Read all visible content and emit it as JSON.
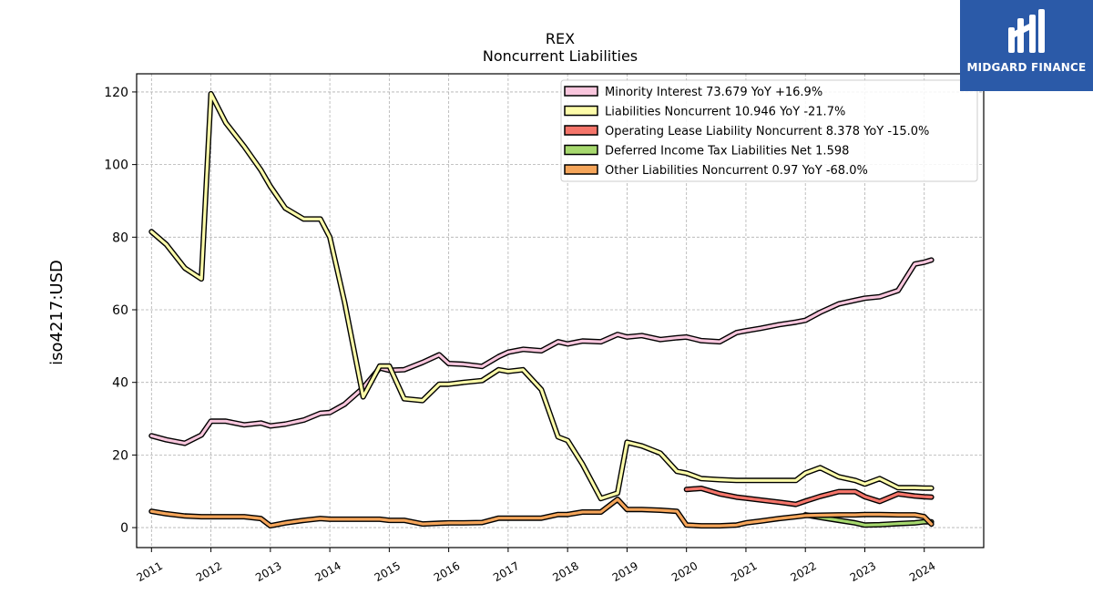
{
  "logo": {
    "text": "MIDGARD FINANCE",
    "bg": "#2b5aa8"
  },
  "chart_data": {
    "type": "line",
    "title": "REX",
    "subtitle": "Noncurrent  Liabilities",
    "ylabel": "iso4217:USD",
    "xlabel": "",
    "xlim": [
      2010.75,
      2025.0
    ],
    "ylim": [
      -5.5,
      125
    ],
    "grid": true,
    "legend_position": "top-right",
    "yticks": [
      0,
      20,
      40,
      60,
      80,
      100,
      120
    ],
    "xticks": [
      "2011",
      "2012",
      "2013",
      "2014",
      "2015",
      "2016",
      "2017",
      "2018",
      "2019",
      "2020",
      "2021",
      "2022",
      "2023",
      "2024"
    ],
    "series": [
      {
        "name": "Minority Interest  73.679 YoY +16.9%",
        "color": "#f9c6dd",
        "x": [
          2011.0,
          2011.25,
          2011.56,
          2011.84,
          2012.0,
          2012.25,
          2012.56,
          2012.84,
          2013.0,
          2013.25,
          2013.56,
          2013.84,
          2014.0,
          2014.25,
          2014.56,
          2014.84,
          2015.0,
          2015.25,
          2015.56,
          2015.84,
          2016.0,
          2016.25,
          2016.56,
          2016.84,
          2017.0,
          2017.25,
          2017.56,
          2017.84,
          2018.0,
          2018.25,
          2018.56,
          2018.84,
          2019.0,
          2019.25,
          2019.56,
          2019.84,
          2020.0,
          2020.25,
          2020.56,
          2020.84,
          2021.0,
          2021.25,
          2021.56,
          2021.84,
          2022.0,
          2022.25,
          2022.56,
          2022.84,
          2023.0,
          2023.25,
          2023.56,
          2023.84,
          2024.0,
          2024.12
        ],
        "y": [
          25.3,
          24.2,
          23.2,
          25.5,
          29.3,
          29.3,
          28.3,
          28.8,
          28.0,
          28.5,
          29.6,
          31.5,
          31.7,
          34.0,
          38.5,
          44.0,
          43.3,
          43.5,
          45.5,
          47.6,
          45.2,
          45.0,
          44.4,
          47.1,
          48.3,
          49.1,
          48.7,
          51.2,
          50.6,
          51.4,
          51.2,
          53.2,
          52.5,
          52.9,
          51.8,
          52.3,
          52.5,
          51.5,
          51.2,
          53.7,
          54.2,
          54.9,
          55.9,
          56.6,
          57.1,
          59.3,
          61.6,
          62.6,
          63.2,
          63.6,
          65.3,
          72.6,
          73.1,
          73.7
        ]
      },
      {
        "name": "Liabilities Noncurrent  10.946 YoY -21.7%",
        "color": "#fdfcaa",
        "x": [
          2011.0,
          2011.25,
          2011.56,
          2011.84,
          2012.0,
          2012.25,
          2012.56,
          2012.84,
          2013.0,
          2013.25,
          2013.56,
          2013.84,
          2014.0,
          2014.25,
          2014.56,
          2014.84,
          2015.0,
          2015.25,
          2015.56,
          2015.84,
          2016.0,
          2016.25,
          2016.56,
          2016.84,
          2017.0,
          2017.25,
          2017.56,
          2017.84,
          2018.0,
          2018.25,
          2018.56,
          2018.84,
          2019.0,
          2019.25,
          2019.56,
          2019.84,
          2020.0,
          2020.25,
          2020.56,
          2020.84,
          2021.0,
          2021.25,
          2021.56,
          2021.84,
          2022.0,
          2022.25,
          2022.56,
          2022.84,
          2023.0,
          2023.25,
          2023.56,
          2023.84,
          2024.0,
          2024.12
        ],
        "y": [
          81.5,
          78.0,
          71.5,
          68.5,
          119.5,
          111.5,
          105.0,
          98.5,
          94.0,
          88.0,
          85.0,
          85.0,
          80.0,
          62.0,
          36.0,
          44.5,
          44.5,
          35.5,
          35.0,
          39.5,
          39.5,
          40.0,
          40.5,
          43.5,
          43.0,
          43.5,
          38.0,
          25.0,
          24.0,
          17.5,
          8.0,
          9.5,
          23.5,
          22.5,
          20.5,
          15.5,
          15.0,
          13.5,
          13.2,
          13.0,
          13.0,
          13.0,
          13.0,
          13.0,
          15.0,
          16.5,
          14.0,
          13.0,
          12.0,
          13.5,
          11.0,
          11.0,
          10.9,
          10.9
        ]
      },
      {
        "name": "Operating Lease Liability Noncurrent  8.378 YoY -15.0%",
        "color": "#f4756a",
        "x": [
          2020.0,
          2020.25,
          2020.56,
          2020.84,
          2021.0,
          2021.25,
          2021.56,
          2021.84,
          2022.0,
          2022.25,
          2022.56,
          2022.84,
          2023.0,
          2023.25,
          2023.56,
          2023.84,
          2024.0,
          2024.12
        ],
        "y": [
          10.5,
          10.8,
          9.3,
          8.4,
          8.1,
          7.6,
          7.0,
          6.4,
          7.3,
          8.6,
          9.9,
          9.9,
          8.5,
          7.2,
          9.3,
          8.7,
          8.5,
          8.4
        ]
      },
      {
        "name": "Deferred Income Tax Liabilities Net  1.598",
        "color": "#a6d86e",
        "x": [
          2022.0,
          2022.25,
          2022.56,
          2022.84,
          2023.0,
          2023.25,
          2023.56,
          2023.84,
          2024.0,
          2024.12
        ],
        "y": [
          3.5,
          2.8,
          2.0,
          1.3,
          0.7,
          0.8,
          1.1,
          1.3,
          1.6,
          1.6
        ]
      },
      {
        "name": "Other Liabilities Noncurrent  0.97 YoY -68.0%",
        "color": "#f5a55a",
        "x": [
          2011.0,
          2011.25,
          2011.56,
          2011.84,
          2012.0,
          2012.25,
          2012.56,
          2012.84,
          2013.0,
          2013.25,
          2013.56,
          2013.84,
          2014.0,
          2014.25,
          2014.56,
          2014.84,
          2015.0,
          2015.25,
          2015.56,
          2015.84,
          2016.0,
          2016.25,
          2016.56,
          2016.84,
          2017.0,
          2017.25,
          2017.56,
          2017.84,
          2018.0,
          2018.25,
          2018.56,
          2018.84,
          2019.0,
          2019.25,
          2019.56,
          2019.84,
          2020.0,
          2020.25,
          2020.56,
          2020.84,
          2021.0,
          2021.25,
          2021.56,
          2021.84,
          2022.0,
          2022.25,
          2022.56,
          2022.84,
          2023.0,
          2023.25,
          2023.56,
          2023.84,
          2024.0,
          2024.12
        ],
        "y": [
          4.5,
          3.8,
          3.2,
          3.0,
          3.0,
          3.0,
          3.0,
          2.5,
          0.5,
          1.3,
          2.0,
          2.5,
          2.3,
          2.3,
          2.3,
          2.3,
          2.0,
          2.0,
          1.0,
          1.2,
          1.3,
          1.3,
          1.4,
          2.6,
          2.6,
          2.6,
          2.6,
          3.6,
          3.6,
          4.3,
          4.3,
          7.8,
          5.0,
          5.0,
          4.8,
          4.5,
          0.7,
          0.5,
          0.5,
          0.7,
          1.3,
          1.8,
          2.5,
          3.0,
          3.3,
          3.4,
          3.5,
          3.5,
          3.6,
          3.6,
          3.5,
          3.5,
          3.0,
          0.97
        ]
      }
    ]
  }
}
